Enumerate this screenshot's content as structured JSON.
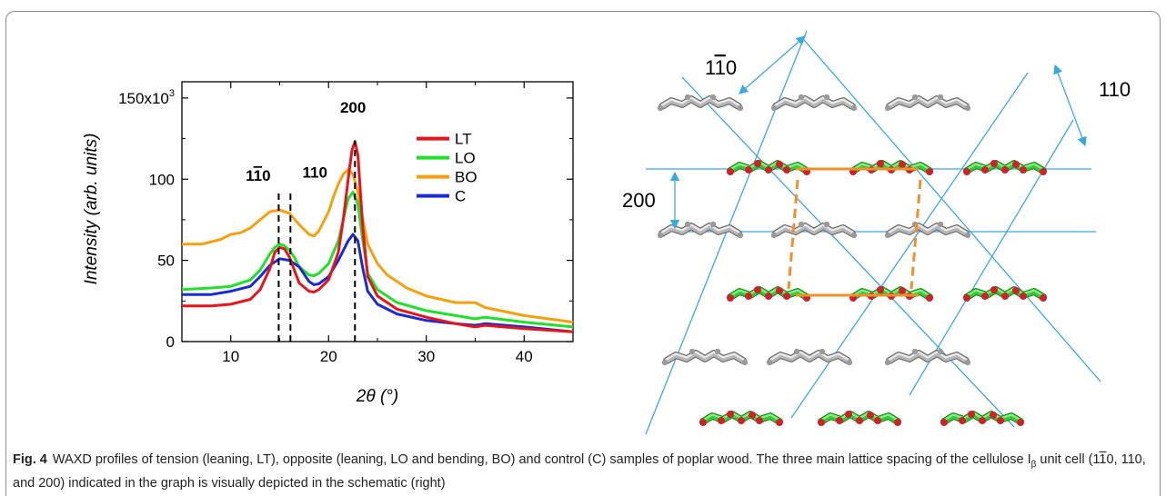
{
  "chart_data": {
    "type": "line",
    "xlabel": "2θ (°)",
    "ylabel": "Intensity (arb. units)",
    "xlim": [
      5,
      45
    ],
    "ylim": [
      0,
      160000
    ],
    "xticks": [
      10,
      20,
      30,
      40
    ],
    "xtick_labels": [
      "10",
      "20",
      "30",
      "40"
    ],
    "yticks": [
      0,
      50000,
      100000,
      150000
    ],
    "ytick_labels": [
      "0",
      "50",
      "100",
      "150x10"
    ],
    "ytick_top_exponent": "3",
    "legend_position": "top-right",
    "series": [
      {
        "name": "LT",
        "color": "#e8141b",
        "x": [
          5,
          8,
          10,
          12,
          13,
          14,
          14.5,
          15,
          15.5,
          16,
          16.5,
          17,
          18,
          18.5,
          19,
          20,
          21,
          21.5,
          22,
          22.4,
          22.7,
          23,
          23.5,
          24,
          25,
          27,
          30,
          33,
          35,
          36,
          40,
          45
        ],
        "y": [
          22000,
          22000,
          23000,
          26000,
          32000,
          45000,
          55000,
          58000,
          57000,
          52000,
          44000,
          36000,
          31000,
          30500,
          32000,
          38000,
          55000,
          75000,
          100000,
          118000,
          123000,
          115000,
          70000,
          40000,
          28000,
          20000,
          15000,
          11000,
          9000,
          10000,
          8000,
          6000
        ]
      },
      {
        "name": "LO",
        "color": "#22e02a",
        "x": [
          5,
          8,
          10,
          12,
          13,
          14,
          14.5,
          15,
          15.5,
          16,
          16.5,
          17,
          18,
          18.5,
          19,
          20,
          21,
          21.5,
          22,
          22.5,
          23,
          23.5,
          24,
          25,
          27,
          30,
          33,
          35,
          36,
          40,
          45
        ],
        "y": [
          32000,
          33000,
          34000,
          38000,
          44000,
          54000,
          58000,
          60000,
          59000,
          56000,
          52000,
          46000,
          41000,
          40500,
          42000,
          48000,
          62000,
          75000,
          88000,
          92000,
          85000,
          62000,
          42000,
          32000,
          24000,
          19000,
          16000,
          14000,
          15000,
          12000,
          9000
        ]
      },
      {
        "name": "BO",
        "color": "#f5a00f",
        "x": [
          5,
          7,
          9,
          10,
          11,
          12,
          13,
          14,
          15,
          16,
          17,
          18,
          18.5,
          19,
          20,
          20.5,
          21,
          21.5,
          22,
          22.5,
          23,
          23.5,
          24,
          25,
          26,
          28,
          30,
          33,
          35,
          36,
          40,
          45
        ],
        "y": [
          60000,
          60000,
          63000,
          66000,
          67000,
          70000,
          75000,
          80000,
          81000,
          79000,
          72000,
          66000,
          65000,
          68000,
          80000,
          89000,
          97000,
          103000,
          106000,
          103000,
          92000,
          75000,
          60000,
          48000,
          41000,
          33000,
          28000,
          24000,
          24000,
          21000,
          16000,
          12000
        ]
      },
      {
        "name": "C",
        "color": "#1a2bd4",
        "x": [
          5,
          8,
          10,
          12,
          13,
          14,
          15,
          16,
          17,
          18,
          18.5,
          19,
          20,
          21,
          22,
          22.5,
          23,
          23.5,
          24,
          25,
          27,
          30,
          33,
          35,
          36,
          40,
          45
        ],
        "y": [
          29000,
          29000,
          31000,
          34000,
          40000,
          47000,
          51000,
          50000,
          46000,
          37000,
          35000,
          35500,
          40000,
          50000,
          62000,
          66000,
          62000,
          45000,
          31000,
          23000,
          17000,
          13000,
          11000,
          10000,
          11000,
          9000,
          6000
        ]
      }
    ],
    "peak_lines": [
      {
        "x": 14.9,
        "label": "1-10"
      },
      {
        "x": 16.1,
        "label": "110"
      },
      {
        "x": 22.7,
        "label": "200"
      }
    ],
    "peak_labels": {
      "p1_digits": "1",
      "p1_bar": "1",
      "p1_tail": "0",
      "p2": "110",
      "p3": "200"
    }
  },
  "schematic": {
    "label_1_10_a": "1",
    "label_1_10_bar": "1",
    "label_1_10_b": "0",
    "label_110": "110",
    "label_200": "200"
  },
  "caption": {
    "fig_label": "Fig. 4",
    "text_1": "WAXD profiles of tension (leaning, LT), opposite (leaning, LO and bending, BO) and control (C) samples of poplar wood. The three main lattice spacing of the cellulose I",
    "subscript": "β",
    "text_2": " unit cell (1",
    "bar_digit": "1",
    "text_3": "0, 110, and 200) indicated in the graph is visually depicted in the schematic (right)"
  },
  "colors": {
    "lattice_line": "#3aa8e0",
    "unit_cell": "#f0902a",
    "chain_grey": "#b8b8b8",
    "chain_green": "#3cc83c",
    "chain_red": "#d0202a"
  }
}
